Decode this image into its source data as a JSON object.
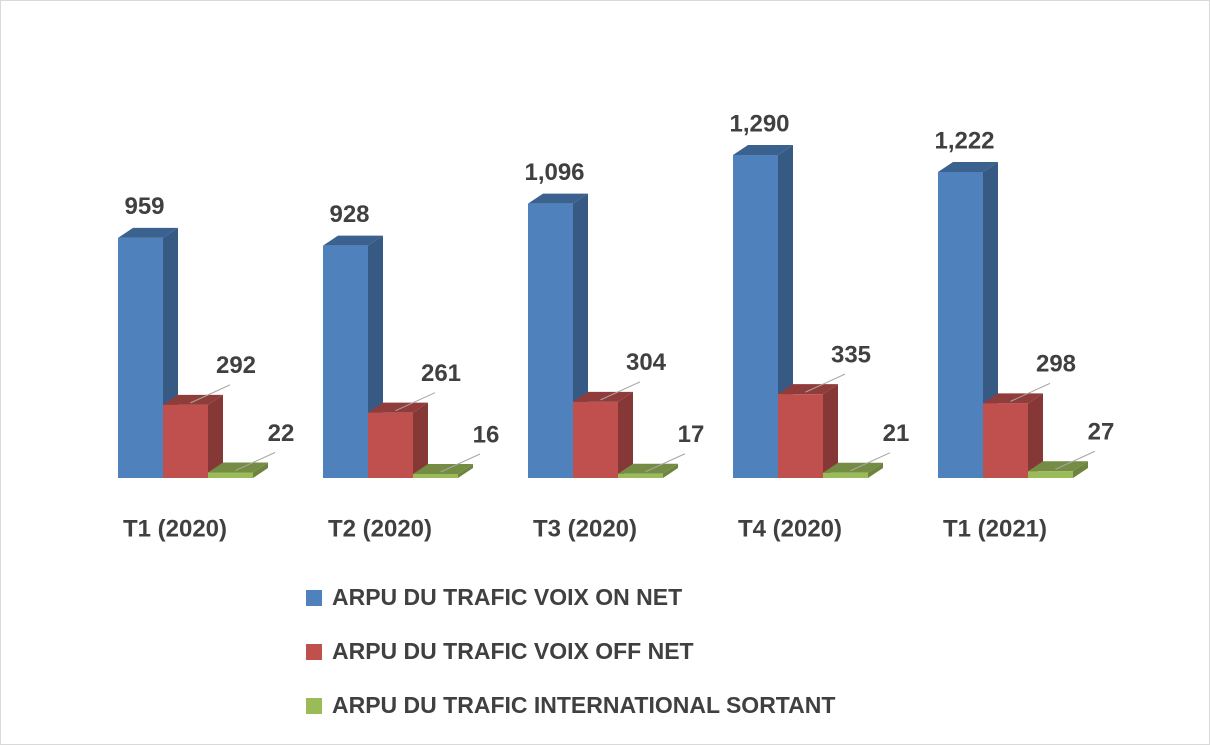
{
  "chart_data": {
    "type": "bar3d",
    "categories": [
      "T1 (2020)",
      "T2 (2020)",
      "T3 (2020)",
      "T4 (2020)",
      "T1 (2021)"
    ],
    "series": [
      {
        "name": "ARPU DU TRAFIC VOIX ON NET",
        "color": "#4f81bd",
        "values": [
          959,
          928,
          1096,
          1290,
          1222
        ],
        "value_labels": [
          "959",
          "928",
          "1,096",
          "1,290",
          "1,222"
        ]
      },
      {
        "name": "ARPU DU TRAFIC VOIX OFF NET",
        "color": "#c0504d",
        "values": [
          292,
          261,
          304,
          335,
          298
        ]
      },
      {
        "name": "ARPU DU TRAFIC INTERNATIONAL SORTANT",
        "color": "#9bbb59",
        "values": [
          22,
          16,
          17,
          21,
          27
        ]
      }
    ],
    "legend": "bottom"
  }
}
